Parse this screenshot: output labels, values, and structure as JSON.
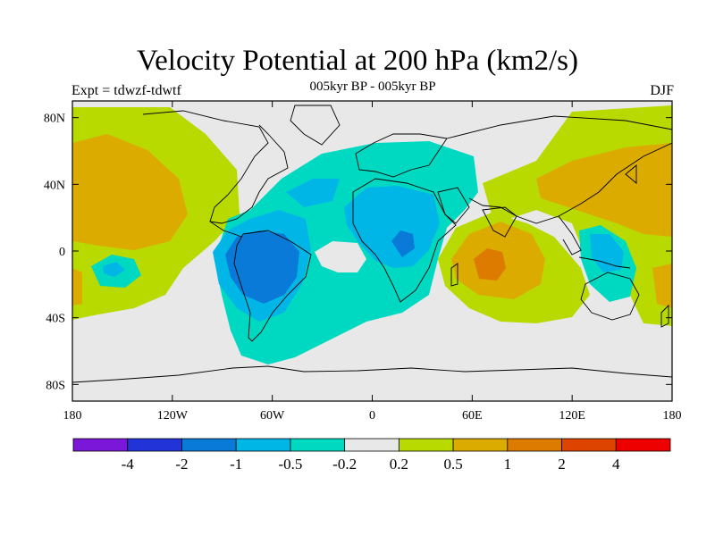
{
  "header": {
    "title": "Velocity Potential at 200 hPa (km2/s)",
    "subtitle": "005kyr BP - 005kyr BP",
    "left_label": "Expt = tdwzf-tdwtf",
    "right_label": "DJF"
  },
  "map": {
    "projection": "cylindrical equidistant",
    "lon_range": [
      -180,
      180
    ],
    "lat_range": [
      -90,
      90
    ],
    "x_ticks": [
      {
        "lon": -180,
        "label": "180"
      },
      {
        "lon": -120,
        "label": "120W"
      },
      {
        "lon": -60,
        "label": "60W"
      },
      {
        "lon": 0,
        "label": "0"
      },
      {
        "lon": 60,
        "label": "60E"
      },
      {
        "lon": 120,
        "label": "120E"
      },
      {
        "lon": 180,
        "label": "180"
      }
    ],
    "y_ticks": [
      {
        "lat": 80,
        "label": "80N"
      },
      {
        "lat": 40,
        "label": "40N"
      },
      {
        "lat": 0,
        "label": "0"
      },
      {
        "lat": -40,
        "label": "40S"
      },
      {
        "lat": -80,
        "label": "80S"
      }
    ],
    "background_color": "#e8e8e8"
  },
  "colorbar": {
    "colors": [
      "#7a17d8",
      "#2233d8",
      "#0a7ad8",
      "#00b6e6",
      "#00d9c2",
      "#e8e8e8",
      "#b8da00",
      "#dcab00",
      "#dd7a00",
      "#dd4400",
      "#ee0000"
    ],
    "labels": [
      "-4",
      "-2",
      "-1",
      "-0.5",
      "-0.2",
      "0.2",
      "0.5",
      "1",
      "2",
      "4"
    ]
  },
  "chart_data": {
    "type": "heatmap",
    "title": "Velocity Potential at 200 hPa (km2/s)",
    "subtitle": "005kyr BP - 005kyr BP",
    "levels": [
      -4,
      -2,
      -1,
      -0.5,
      -0.2,
      0.2,
      0.5,
      1,
      2,
      4
    ],
    "regions": [
      {
        "level_range": [
          -2,
          -1
        ],
        "lon": [
          -78,
          -40
        ],
        "lat": [
          -25,
          8
        ]
      },
      {
        "level_range": [
          -1,
          -0.5
        ],
        "lon": [
          -85,
          -35
        ],
        "lat": [
          -35,
          10
        ]
      },
      {
        "level_range": [
          -1,
          -0.5
        ],
        "lon": [
          10,
          25
        ],
        "lat": [
          -5,
          10
        ]
      },
      {
        "level_range": [
          -0.5,
          -0.2
        ],
        "lon": [
          -100,
          50
        ],
        "lat": [
          -60,
          60
        ]
      },
      {
        "level_range": [
          0.5,
          1
        ],
        "lon": [
          -180,
          -120
        ],
        "lat": [
          -10,
          60
        ]
      },
      {
        "level_range": [
          1,
          2
        ],
        "lon": [
          58,
          75
        ],
        "lat": [
          -20,
          -5
        ]
      },
      {
        "level_range": [
          0.5,
          1
        ],
        "lon": [
          40,
          95
        ],
        "lat": [
          -30,
          20
        ]
      },
      {
        "level_range": [
          0.5,
          1
        ],
        "lon": [
          100,
          180
        ],
        "lat": [
          20,
          70
        ]
      },
      {
        "level_range": [
          -0.5,
          -0.2
        ],
        "lon": [
          130,
          160
        ],
        "lat": [
          -35,
          12
        ]
      },
      {
        "level_range": [
          0.2,
          0.5
        ],
        "lon": [
          -180,
          180
        ],
        "lat": [
          -45,
          90
        ]
      }
    ]
  }
}
